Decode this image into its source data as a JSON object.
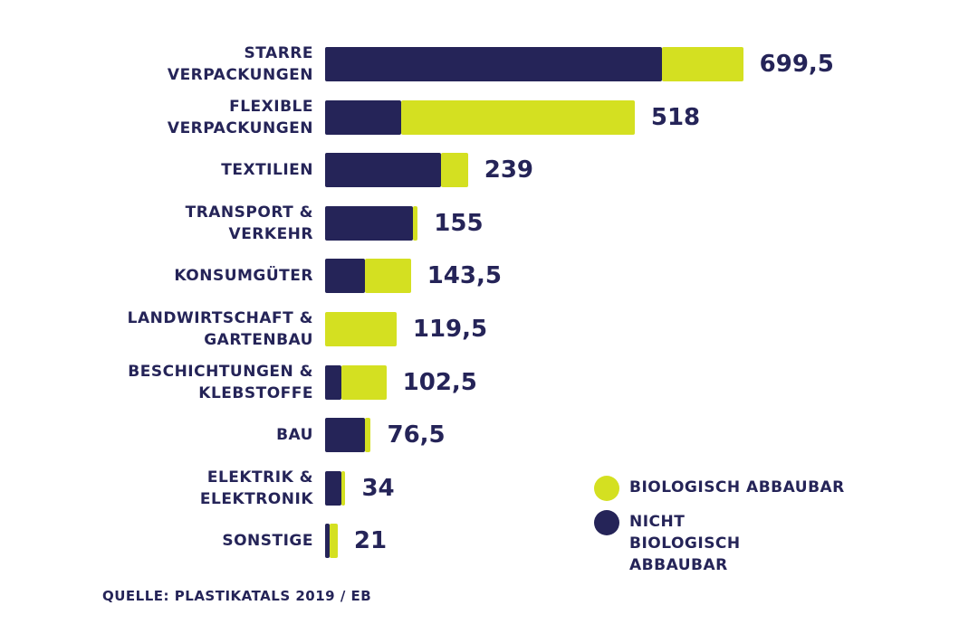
{
  "colors": {
    "biodegradable": "#d4e021",
    "non_biodegradable": "#252458",
    "text": "#252458"
  },
  "chart_data": {
    "type": "bar",
    "orientation": "horizontal",
    "stacked": true,
    "categories": [
      "STARRE\nVERPACKUNGEN",
      "FLEXIBLE\nVERPACKUNGEN",
      "TEXTILIEN",
      "TRANSPORT &\nVERKEHR",
      "KONSUMGÜTER",
      "LANDWIRTSCHAFT &\nGARTENBAU",
      "BESCHICHTUNGEN &\nKLEBSTOFFE",
      "BAU",
      "ELEKTRIK &\nELEKTRONIK",
      "SONSTIGE"
    ],
    "series": [
      {
        "name": "NICHT BIOLOGISCH ABBAUBAR",
        "values": [
          563,
          127,
          194,
          147,
          66,
          0,
          28,
          66,
          27,
          8
        ]
      },
      {
        "name": "BIOLOGISCH ABBAUBAR",
        "values": [
          136.5,
          391,
          45,
          8,
          77.5,
          119.5,
          74.5,
          10.5,
          7,
          13
        ]
      }
    ],
    "totals": [
      699.5,
      518,
      239,
      155,
      143.5,
      119.5,
      102.5,
      76.5,
      34,
      21
    ],
    "total_labels": [
      "699,5",
      "518",
      "239",
      "155",
      "143,5",
      "119,5",
      "102,5",
      "76,5",
      "34",
      "21"
    ],
    "xlim": [
      0,
      699.5
    ],
    "legend_position": "bottom-right"
  },
  "legend": {
    "items": [
      {
        "label": "BIOLOGISCH ABBAUBAR",
        "color": "#d4e021"
      },
      {
        "label": "NICHT BIOLOGISCH\nABBAUBAR",
        "color": "#252458"
      }
    ]
  },
  "source": "QUELLE: PLASTIKATALS 2019 / EB"
}
